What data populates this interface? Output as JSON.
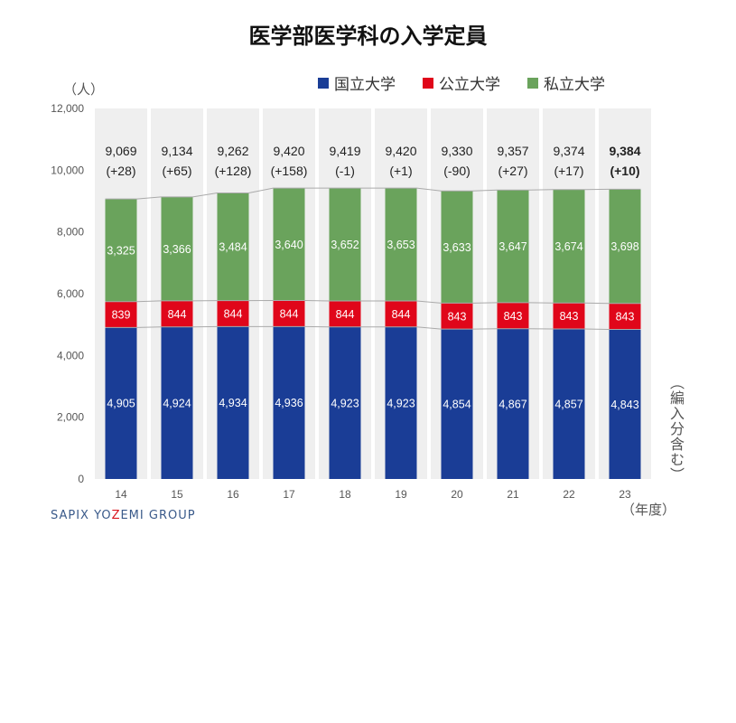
{
  "title": "医学部医学科の入学定員",
  "unit_label": "（人）",
  "note": "（編入分含む）",
  "year_suffix": "（年度）",
  "source": {
    "before": "SAPIX YO",
    "highlight": "Z",
    "after": "EMI GROUP"
  },
  "colors": {
    "national": "#1a3d96",
    "public": "#e0061a",
    "private": "#6aa35c",
    "bg": "#efefef",
    "connector": "#aaaaaa"
  },
  "chart_data": {
    "type": "bar",
    "stacked": true,
    "categories": [
      "14",
      "15",
      "16",
      "17",
      "18",
      "19",
      "20",
      "21",
      "22",
      "23"
    ],
    "series": [
      {
        "name": "国立大学",
        "values": [
          4905,
          4924,
          4934,
          4936,
          4923,
          4923,
          4854,
          4867,
          4857,
          4843
        ]
      },
      {
        "name": "公立大学",
        "values": [
          839,
          844,
          844,
          844,
          844,
          844,
          843,
          843,
          843,
          843
        ]
      },
      {
        "name": "私立大学",
        "values": [
          3325,
          3366,
          3484,
          3640,
          3652,
          3653,
          3633,
          3647,
          3674,
          3698
        ]
      }
    ],
    "totals": [
      "9,069",
      "9,134",
      "9,262",
      "9,420",
      "9,419",
      "9,420",
      "9,330",
      "9,357",
      "9,374",
      "9,384"
    ],
    "changes": [
      "(+28)",
      "(+65)",
      "(+128)",
      "(+158)",
      "(-1)",
      "(+1)",
      "(-90)",
      "(+27)",
      "(+17)",
      "(+10)"
    ],
    "y_ticks": [
      "0",
      "2,000",
      "4,000",
      "6,000",
      "8,000",
      "10,000",
      "12,000"
    ],
    "ylim": [
      0,
      12000
    ],
    "legend_position": "top-right",
    "grid": false
  }
}
